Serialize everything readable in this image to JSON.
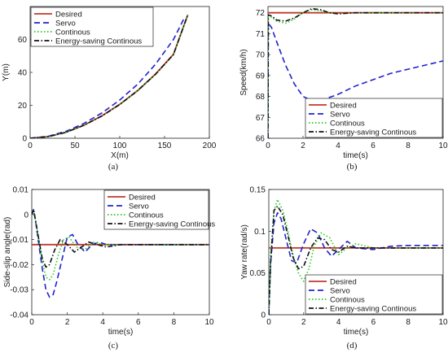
{
  "chart_data": [
    {
      "type": "line",
      "caption": "(a)",
      "xlabel": "X(m)",
      "ylabel": "Y(m)",
      "xlim": [
        0,
        200
      ],
      "ylim": [
        0,
        80
      ],
      "xticks": [
        "0",
        "50",
        "100",
        "150",
        "200"
      ],
      "yticks": [
        "0",
        "20",
        "40",
        "60"
      ],
      "legend_position": "top-left",
      "series": [
        {
          "name": "Desired",
          "color": "#c0392b",
          "dash": "solid",
          "x": [
            0,
            20,
            40,
            60,
            80,
            100,
            120,
            140,
            160,
            176
          ],
          "y": [
            0,
            1,
            3.6,
            7.9,
            13.6,
            20.6,
            29,
            39,
            51,
            75
          ]
        },
        {
          "name": "Servo",
          "color": "#2222cc",
          "dash": "dashed",
          "x": [
            0,
            20,
            40,
            60,
            80,
            100,
            120,
            140,
            160,
            172
          ],
          "y": [
            0,
            1.2,
            4.2,
            9,
            15.3,
            23.2,
            32.8,
            45,
            60,
            73
          ]
        },
        {
          "name": "Continous",
          "color": "#22cc22",
          "dash": "dotted",
          "x": [
            0,
            20,
            40,
            60,
            80,
            100,
            120,
            140,
            160,
            176
          ],
          "y": [
            0,
            1,
            3.5,
            7.8,
            13.4,
            20.4,
            28.7,
            38.7,
            50.6,
            75
          ]
        },
        {
          "name": "Energy-saving Continous",
          "color": "#111111",
          "dash": "dashdot",
          "x": [
            0,
            20,
            40,
            60,
            80,
            100,
            120,
            140,
            160,
            176
          ],
          "y": [
            0,
            1,
            3.6,
            7.9,
            13.5,
            20.5,
            28.9,
            38.9,
            50.9,
            75
          ]
        }
      ]
    },
    {
      "type": "line",
      "caption": "(b)",
      "xlabel": "time(s)",
      "ylabel": "Speed(km/h)",
      "xlim": [
        0,
        10
      ],
      "ylim": [
        66,
        72.3
      ],
      "xticks": [
        "0",
        "2",
        "4",
        "6",
        "8",
        "10"
      ],
      "yticks": [
        "66",
        "67",
        "68",
        "69",
        "70",
        "71",
        "72"
      ],
      "legend_position": "bottom-right",
      "series": [
        {
          "name": "Desired",
          "color": "#c0392b",
          "dash": "solid",
          "x": [
            0,
            10
          ],
          "y": [
            72,
            72
          ]
        },
        {
          "name": "Servo",
          "color": "#2222cc",
          "dash": "dashed",
          "x": [
            0,
            0.02,
            0.2,
            0.5,
            1,
            1.5,
            2,
            2.5,
            3,
            4,
            5,
            6,
            7,
            8,
            9,
            10
          ],
          "y": [
            66,
            71.5,
            71.3,
            70.6,
            69.5,
            68.6,
            68,
            67.8,
            67.8,
            68.1,
            68.5,
            68.8,
            69.1,
            69.3,
            69.5,
            69.7
          ]
        },
        {
          "name": "Continous",
          "color": "#22cc22",
          "dash": "dotted",
          "x": [
            0,
            0.02,
            0.2,
            0.5,
            1,
            1.5,
            2,
            2.5,
            3,
            3.5,
            4,
            5,
            6,
            8,
            10
          ],
          "y": [
            66,
            71.8,
            71.8,
            71.6,
            71.5,
            71.7,
            72,
            72.15,
            72.1,
            72,
            71.95,
            72,
            72,
            72,
            72
          ]
        },
        {
          "name": "Energy-saving Continous",
          "color": "#111111",
          "dash": "dashdot",
          "x": [
            0,
            0.02,
            0.2,
            0.5,
            1,
            1.5,
            2,
            2.5,
            3,
            3.5,
            4,
            5,
            6,
            8,
            10
          ],
          "y": [
            66,
            71.9,
            71.85,
            71.65,
            71.6,
            71.75,
            72,
            72.2,
            72.15,
            72,
            71.95,
            72,
            72,
            72,
            72
          ]
        }
      ]
    },
    {
      "type": "line",
      "caption": "(c)",
      "xlabel": "time(s)",
      "ylabel": "Side-slip angle(rad)",
      "xlim": [
        0,
        10
      ],
      "ylim": [
        -0.04,
        0.01
      ],
      "xticks": [
        "0",
        "2",
        "4",
        "6",
        "8",
        "10"
      ],
      "yticks": [
        "-0.04",
        "-0.03",
        "-0.02",
        "-0.01",
        "0",
        "0.01"
      ],
      "legend_position": "top-right",
      "series": [
        {
          "name": "Desired",
          "color": "#c0392b",
          "dash": "solid",
          "x": [
            0,
            10
          ],
          "y": [
            -0.012,
            -0.012
          ]
        },
        {
          "name": "Servo",
          "color": "#2222cc",
          "dash": "dashed",
          "x": [
            0,
            0.1,
            0.2,
            0.4,
            0.6,
            0.8,
            1,
            1.2,
            1.4,
            1.7,
            2,
            2.3,
            2.6,
            3,
            3.4,
            3.8,
            4.2,
            5,
            6,
            8,
            10
          ],
          "y": [
            0,
            0.002,
            -0.002,
            -0.012,
            -0.022,
            -0.03,
            -0.033,
            -0.032,
            -0.027,
            -0.018,
            -0.009,
            -0.008,
            -0.012,
            -0.015,
            -0.012,
            -0.011,
            -0.012,
            -0.012,
            -0.012,
            -0.012,
            -0.012
          ]
        },
        {
          "name": "Continous",
          "color": "#22cc22",
          "dash": "dotted",
          "x": [
            0,
            0.1,
            0.2,
            0.4,
            0.6,
            0.8,
            1,
            1.2,
            1.5,
            1.8,
            2.1,
            2.5,
            3,
            3.5,
            4,
            5,
            6,
            8,
            10
          ],
          "y": [
            0,
            0.002,
            -0.002,
            -0.01,
            -0.019,
            -0.025,
            -0.026,
            -0.024,
            -0.016,
            -0.01,
            -0.009,
            -0.013,
            -0.014,
            -0.011,
            -0.012,
            -0.012,
            -0.012,
            -0.012,
            -0.012
          ]
        },
        {
          "name": "Energy-saving Continous",
          "color": "#111111",
          "dash": "dashdot",
          "x": [
            0,
            0.1,
            0.2,
            0.4,
            0.6,
            0.8,
            1,
            1.3,
            1.6,
            2,
            2.4,
            2.8,
            3.2,
            3.7,
            4.2,
            5,
            6,
            8,
            10
          ],
          "y": [
            0,
            0.002,
            -0.002,
            -0.01,
            -0.018,
            -0.021,
            -0.02,
            -0.014,
            -0.01,
            -0.012,
            -0.015,
            -0.013,
            -0.011,
            -0.012,
            -0.013,
            -0.012,
            -0.012,
            -0.012,
            -0.012
          ]
        }
      ]
    },
    {
      "type": "line",
      "caption": "(d)",
      "xlabel": "time(s)",
      "ylabel": "Yaw rate(rad/s)",
      "xlim": [
        0,
        10
      ],
      "ylim": [
        0,
        0.15
      ],
      "xticks": [
        "0",
        "2",
        "4",
        "6",
        "8",
        "10"
      ],
      "yticks": [
        "0",
        "0.05",
        "0.1",
        "0.15"
      ],
      "legend_position": "bottom-right",
      "series": [
        {
          "name": "Desired",
          "color": "#c0392b",
          "dash": "solid",
          "x": [
            0,
            10
          ],
          "y": [
            0.08,
            0.08
          ]
        },
        {
          "name": "Servo",
          "color": "#2222cc",
          "dash": "dashed",
          "x": [
            0,
            0.1,
            0.3,
            0.5,
            0.7,
            1,
            1.3,
            1.6,
            2,
            2.4,
            2.8,
            3.2,
            3.6,
            4,
            4.5,
            5,
            6,
            7,
            8,
            10
          ],
          "y": [
            0,
            0.06,
            0.11,
            0.122,
            0.115,
            0.09,
            0.065,
            0.062,
            0.085,
            0.103,
            0.098,
            0.08,
            0.07,
            0.078,
            0.088,
            0.08,
            0.078,
            0.082,
            0.083,
            0.083
          ]
        },
        {
          "name": "Continous",
          "color": "#22cc22",
          "dash": "dotted",
          "x": [
            0,
            0.1,
            0.3,
            0.5,
            0.8,
            1.1,
            1.4,
            1.7,
            2,
            2.3,
            2.6,
            3,
            3.5,
            4,
            4.5,
            5,
            6,
            8,
            10
          ],
          "y": [
            0,
            0.07,
            0.125,
            0.138,
            0.125,
            0.1,
            0.07,
            0.05,
            0.04,
            0.055,
            0.082,
            0.098,
            0.092,
            0.072,
            0.08,
            0.085,
            0.08,
            0.08,
            0.08
          ]
        },
        {
          "name": "Energy-saving Continous",
          "color": "#111111",
          "dash": "dashdot",
          "x": [
            0,
            0.1,
            0.3,
            0.5,
            0.8,
            1.1,
            1.4,
            1.7,
            2,
            2.4,
            2.8,
            3.2,
            3.6,
            4,
            4.5,
            5,
            6,
            8,
            10
          ],
          "y": [
            0,
            0.06,
            0.125,
            0.13,
            0.12,
            0.095,
            0.068,
            0.055,
            0.058,
            0.08,
            0.092,
            0.09,
            0.078,
            0.075,
            0.082,
            0.08,
            0.08,
            0.08,
            0.08
          ]
        }
      ]
    }
  ]
}
